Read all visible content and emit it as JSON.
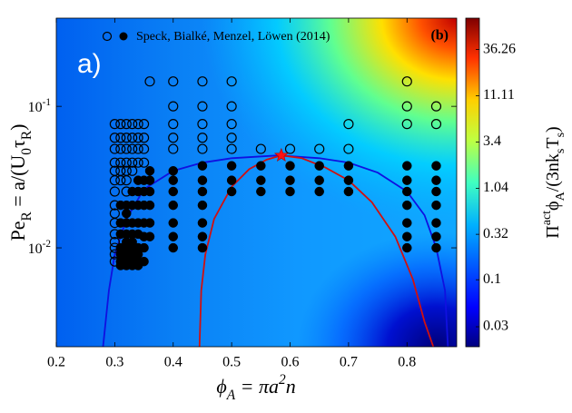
{
  "chart_data": {
    "type": "scatter",
    "panel_label": "a)",
    "panel_tag": "(b)",
    "xlabel": "ϕ_A = πa^2n",
    "ylabel": "Pe_R = a/(U_0τ_R)",
    "colorbar_label": "Π^{act}ϕ_A/(3nk_sT_s)",
    "legend_label": "Speck, Bialké, Menzel, Löwen (2014)",
    "xlim": [
      0.2,
      0.885
    ],
    "xticks": [
      0.2,
      0.3,
      0.4,
      0.5,
      0.6,
      0.7,
      0.8
    ],
    "ylim": [
      0.002,
      0.42
    ],
    "yscale": "log",
    "yticks": [
      {
        "value": 0.1,
        "label": "10^{-1}"
      },
      {
        "value": 0.01,
        "label": "10^{-2}"
      }
    ],
    "colorbar": {
      "scale": "log",
      "lim": [
        0.018,
        81
      ],
      "ticks": [
        36.26,
        11.11,
        3.4,
        1.04,
        0.32,
        0.1,
        0.03
      ]
    },
    "series": [
      {
        "marker": "open",
        "color": "#000000",
        "x": [
          0.3,
          0.3,
          0.3,
          0.3,
          0.3,
          0.3,
          0.3,
          0.3,
          0.3,
          0.3,
          0.3,
          0.3,
          0.3,
          0.3,
          0.3,
          0.31,
          0.31,
          0.31,
          0.31,
          0.31,
          0.31,
          0.32,
          0.32,
          0.32,
          0.32,
          0.32,
          0.32,
          0.32,
          0.33,
          0.33,
          0.33,
          0.33,
          0.33,
          0.34,
          0.34,
          0.34,
          0.34,
          0.35,
          0.35,
          0.35,
          0.35,
          0.36,
          0.4,
          0.4,
          0.4,
          0.4,
          0.4,
          0.45,
          0.45,
          0.45,
          0.45,
          0.45,
          0.5,
          0.5,
          0.5,
          0.5,
          0.5,
          0.55,
          0.6,
          0.65,
          0.7,
          0.7,
          0.8,
          0.8,
          0.8,
          0.85,
          0.85
        ],
        "y": [
          0.075,
          0.06,
          0.05,
          0.04,
          0.035,
          0.03,
          0.025,
          0.02,
          0.0175,
          0.015,
          0.0125,
          0.011,
          0.01,
          0.009,
          0.008,
          0.075,
          0.06,
          0.05,
          0.04,
          0.035,
          0.03,
          0.075,
          0.06,
          0.05,
          0.04,
          0.035,
          0.03,
          0.025,
          0.075,
          0.06,
          0.05,
          0.04,
          0.035,
          0.075,
          0.06,
          0.05,
          0.04,
          0.075,
          0.06,
          0.05,
          0.04,
          0.15,
          0.15,
          0.1,
          0.075,
          0.06,
          0.05,
          0.15,
          0.1,
          0.075,
          0.06,
          0.05,
          0.15,
          0.1,
          0.075,
          0.06,
          0.05,
          0.05,
          0.05,
          0.05,
          0.075,
          0.05,
          0.15,
          0.1,
          0.075,
          0.1,
          0.075
        ]
      },
      {
        "marker": "filled",
        "color": "#000000",
        "x": [
          0.31,
          0.31,
          0.31,
          0.31,
          0.31,
          0.31,
          0.31,
          0.32,
          0.32,
          0.32,
          0.32,
          0.32,
          0.32,
          0.32,
          0.32,
          0.32,
          0.33,
          0.33,
          0.33,
          0.33,
          0.33,
          0.33,
          0.33,
          0.33,
          0.33,
          0.34,
          0.34,
          0.34,
          0.34,
          0.34,
          0.34,
          0.34,
          0.34,
          0.34,
          0.35,
          0.35,
          0.35,
          0.35,
          0.35,
          0.35,
          0.35,
          0.36,
          0.36,
          0.36,
          0.36,
          0.36,
          0.36,
          0.4,
          0.4,
          0.4,
          0.4,
          0.4,
          0.4,
          0.4,
          0.45,
          0.45,
          0.45,
          0.45,
          0.45,
          0.45,
          0.45,
          0.5,
          0.5,
          0.5,
          0.55,
          0.55,
          0.55,
          0.6,
          0.6,
          0.6,
          0.65,
          0.65,
          0.65,
          0.7,
          0.7,
          0.7,
          0.8,
          0.8,
          0.8,
          0.8,
          0.8,
          0.8,
          0.8,
          0.85,
          0.85,
          0.85,
          0.85,
          0.85,
          0.85,
          0.85
        ],
        "y": [
          0.02,
          0.015,
          0.0125,
          0.01,
          0.009,
          0.008,
          0.0075,
          0.02,
          0.0175,
          0.015,
          0.0125,
          0.011,
          0.01,
          0.009,
          0.008,
          0.0075,
          0.025,
          0.02,
          0.015,
          0.0125,
          0.011,
          0.01,
          0.009,
          0.008,
          0.0075,
          0.03,
          0.025,
          0.02,
          0.015,
          0.0125,
          0.01,
          0.009,
          0.008,
          0.0075,
          0.03,
          0.025,
          0.02,
          0.015,
          0.012,
          0.01,
          0.008,
          0.035,
          0.03,
          0.025,
          0.02,
          0.015,
          0.012,
          0.035,
          0.03,
          0.025,
          0.02,
          0.015,
          0.012,
          0.01,
          0.038,
          0.03,
          0.025,
          0.02,
          0.015,
          0.012,
          0.01,
          0.038,
          0.03,
          0.025,
          0.038,
          0.03,
          0.025,
          0.038,
          0.03,
          0.025,
          0.038,
          0.03,
          0.025,
          0.038,
          0.03,
          0.025,
          0.038,
          0.03,
          0.025,
          0.02,
          0.015,
          0.012,
          0.01,
          0.038,
          0.03,
          0.025,
          0.02,
          0.015,
          0.012,
          0.01
        ]
      }
    ],
    "curves": [
      {
        "color": "#1010e0",
        "x": [
          0.28,
          0.29,
          0.3,
          0.32,
          0.35,
          0.4,
          0.45,
          0.5,
          0.58,
          0.65,
          0.7,
          0.75,
          0.8,
          0.83,
          0.85,
          0.865,
          0.87
        ],
        "y": [
          0.002,
          0.005,
          0.009,
          0.016,
          0.026,
          0.035,
          0.04,
          0.043,
          0.045,
          0.043,
          0.04,
          0.034,
          0.025,
          0.017,
          0.01,
          0.005,
          0.002
        ]
      },
      {
        "color": "#d01010",
        "x": [
          0.445,
          0.448,
          0.455,
          0.47,
          0.5,
          0.53,
          0.56,
          0.585,
          0.62,
          0.66,
          0.7,
          0.74,
          0.78,
          0.81,
          0.83,
          0.845
        ],
        "y": [
          0.002,
          0.005,
          0.009,
          0.016,
          0.027,
          0.036,
          0.042,
          0.045,
          0.043,
          0.037,
          0.03,
          0.021,
          0.012,
          0.006,
          0.003,
          0.002
        ]
      }
    ],
    "critical_point": {
      "x": 0.585,
      "y": 0.045,
      "color": "#ff1010"
    }
  }
}
